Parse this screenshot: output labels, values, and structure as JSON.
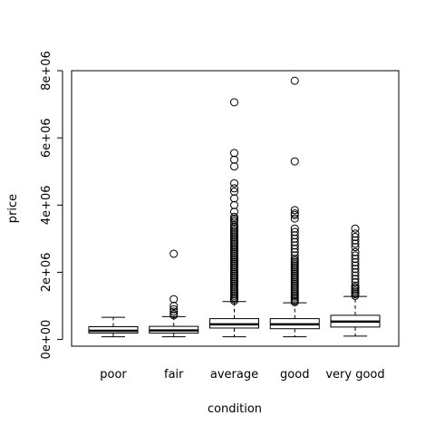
{
  "chart_data": {
    "type": "boxplot",
    "title": "",
    "xlabel": "condition",
    "ylabel": "price",
    "ylim": [
      -200000,
      8000000
    ],
    "yticks": [
      0,
      2000000,
      4000000,
      6000000,
      8000000
    ],
    "ytick_labels": [
      "0e+00",
      "2e+06",
      "4e+06",
      "6e+06",
      "8e+06"
    ],
    "categories": [
      "poor",
      "fair",
      "average",
      "good",
      "very good"
    ],
    "colors": {
      "stroke": "#000000",
      "background": "#ffffff"
    },
    "boxes": [
      {
        "category": "poor",
        "whisker_low": 80000,
        "q1": 190000,
        "median": 260000,
        "q3": 380000,
        "whisker_high": 660000,
        "outliers": []
      },
      {
        "category": "fair",
        "whisker_low": 80000,
        "q1": 190000,
        "median": 270000,
        "q3": 390000,
        "whisker_high": 680000,
        "outliers": [
          720000,
          760000,
          830000,
          900000,
          1000000,
          1200000,
          2550000
        ]
      },
      {
        "category": "average",
        "whisker_low": 80000,
        "q1": 340000,
        "median": 450000,
        "q3": 620000,
        "whisker_high": 1130000,
        "outliers": [
          1150000,
          1200000,
          1250000,
          1300000,
          1350000,
          1400000,
          1450000,
          1500000,
          1550000,
          1600000,
          1650000,
          1700000,
          1750000,
          1800000,
          1850000,
          1900000,
          1950000,
          2000000,
          2050000,
          2100000,
          2150000,
          2200000,
          2250000,
          2300000,
          2350000,
          2400000,
          2450000,
          2500000,
          2550000,
          2600000,
          2650000,
          2700000,
          2750000,
          2800000,
          2850000,
          2900000,
          2950000,
          3000000,
          3050000,
          3100000,
          3150000,
          3200000,
          3250000,
          3300000,
          3350000,
          3400000,
          3500000,
          3550000,
          3600000,
          3650000,
          3800000,
          4000000,
          4200000,
          4400000,
          4500000,
          4650000,
          5150000,
          5350000,
          5550000,
          7060000
        ]
      },
      {
        "category": "good",
        "whisker_low": 80000,
        "q1": 320000,
        "median": 450000,
        "q3": 620000,
        "whisker_high": 1090000,
        "outliers": [
          1110000,
          1150000,
          1200000,
          1250000,
          1300000,
          1350000,
          1400000,
          1450000,
          1500000,
          1550000,
          1600000,
          1650000,
          1700000,
          1750000,
          1800000,
          1850000,
          1900000,
          1950000,
          2000000,
          2050000,
          2100000,
          2150000,
          2200000,
          2250000,
          2300000,
          2350000,
          2400000,
          2500000,
          2600000,
          2700000,
          2800000,
          2900000,
          3000000,
          3100000,
          3200000,
          3300000,
          3600000,
          3700000,
          3750000,
          3850000,
          5300000,
          7700000
        ]
      },
      {
        "category": "very good",
        "whisker_low": 100000,
        "q1": 370000,
        "median": 530000,
        "q3": 720000,
        "whisker_high": 1280000,
        "outliers": [
          1300000,
          1350000,
          1400000,
          1450000,
          1500000,
          1550000,
          1600000,
          1700000,
          1800000,
          1900000,
          2000000,
          2100000,
          2200000,
          2300000,
          2400000,
          2500000,
          2600000,
          2750000,
          2850000,
          2950000,
          3050000,
          3150000,
          3300000
        ]
      }
    ]
  }
}
